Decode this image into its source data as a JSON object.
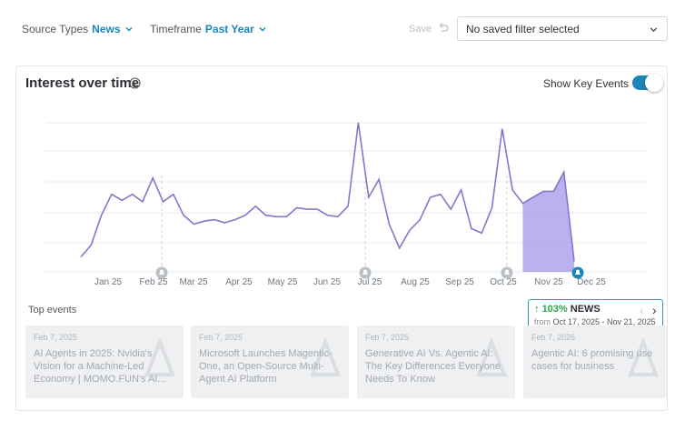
{
  "filters": {
    "source_types": {
      "label": "Source Types",
      "value": "News"
    },
    "timeframe": {
      "label": "Timeframe",
      "value": "Past Year"
    },
    "save_label": "Save",
    "saved_filter": "No saved filter selected"
  },
  "card": {
    "title": "Interest over time",
    "show_key_events_label": "Show Key Events",
    "show_key_events_on": true
  },
  "chart_data": {
    "type": "line",
    "x_tick_labels": [
      "Jan 25",
      "Feb 25",
      "Mar 25",
      "Apr 25",
      "May 25",
      "Jun 25",
      "Jul 25",
      "Aug 25",
      "Sep 25",
      "Oct 25",
      "Nov 25",
      "Dec 25"
    ],
    "series": [
      {
        "values": [
          10,
          18,
          38,
          52,
          48,
          52,
          47,
          63,
          47,
          52,
          38,
          32,
          34,
          35,
          33,
          35,
          38,
          44,
          38,
          37,
          37,
          43,
          42,
          42,
          38,
          37,
          44,
          100,
          50,
          62,
          32,
          16,
          28,
          35,
          50,
          52,
          42,
          55,
          29,
          26,
          43,
          96,
          55,
          46,
          50,
          54,
          54,
          67,
          7
        ]
      }
    ],
    "highlight_range": "Oct 17, 2025 - Nov 21, 2025",
    "key_event_markers": [
      "Feb 25",
      "Jul 25",
      "Oct 25",
      "Dec 25"
    ],
    "grid": true,
    "accent_color": "#8775cc",
    "highlight_color": "#a596ea"
  },
  "tooltip": {
    "arrow": "↑",
    "percent": "103%",
    "source": "NEWS",
    "from_label": "from",
    "range": "Oct 17, 2025 - Nov 21, 2025"
  },
  "top_events": {
    "title": "Top events",
    "items": [
      {
        "date": "Feb 7, 2025",
        "headline": "AI Agents in 2025: Nvidia's Vision for a Machine-Led Economy | MOMO.FUN's AI..."
      },
      {
        "date": "Feb 7, 2025",
        "headline": "Microsoft Launches Magentic-One, an Open-Source Multi-Agent AI Platform"
      },
      {
        "date": "Feb 7, 2025",
        "headline": "Generative AI Vs. Agentic AI: The Key Differences Everyone Needs To Know"
      },
      {
        "date": "Feb 7, 2025",
        "headline": "Agentic AI: 6 promising use cases for business"
      }
    ]
  },
  "icons": {
    "chevron": "chevron-down-icon",
    "undo": "undo-icon",
    "info": "info-icon",
    "marker": "key-event-icon"
  }
}
